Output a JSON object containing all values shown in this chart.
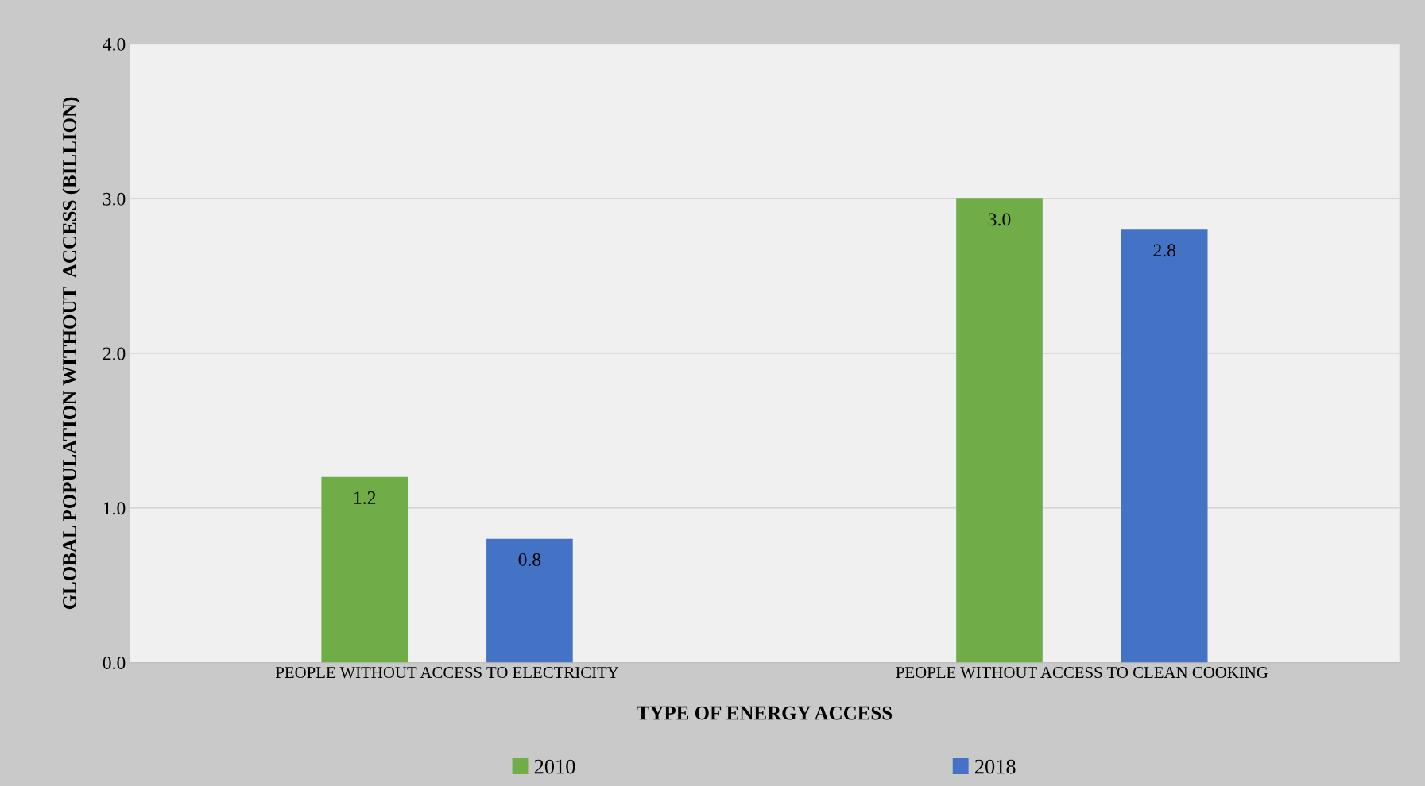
{
  "chart_data": {
    "type": "bar",
    "xlabel": "TYPE OF ENERGY ACCESS",
    "ylabel": "GLOBAL POPULATION WITHOUT  ACCESS (BILLION)",
    "categories": [
      "PEOPLE WITHOUT ACCESS TO ELECTRICITY",
      "PEOPLE WITHOUT ACCESS TO CLEAN COOKING"
    ],
    "series": [
      {
        "name": "2010",
        "color": "#70ad47",
        "values": [
          1.2,
          3.0
        ],
        "value_labels": [
          "1.2",
          "3.0"
        ]
      },
      {
        "name": "2018",
        "color": "#4472c4",
        "values": [
          0.8,
          2.8
        ],
        "value_labels": [
          "0.8",
          "2.8"
        ]
      }
    ],
    "ylim": [
      0,
      4
    ],
    "yticks": [
      {
        "value": 0,
        "label": "0.0"
      },
      {
        "value": 1,
        "label": "1.0"
      },
      {
        "value": 2,
        "label": "2.0"
      },
      {
        "value": 3,
        "label": "3.0"
      },
      {
        "value": 4,
        "label": "4.0"
      }
    ],
    "grid": "y",
    "legend": "bottom"
  }
}
